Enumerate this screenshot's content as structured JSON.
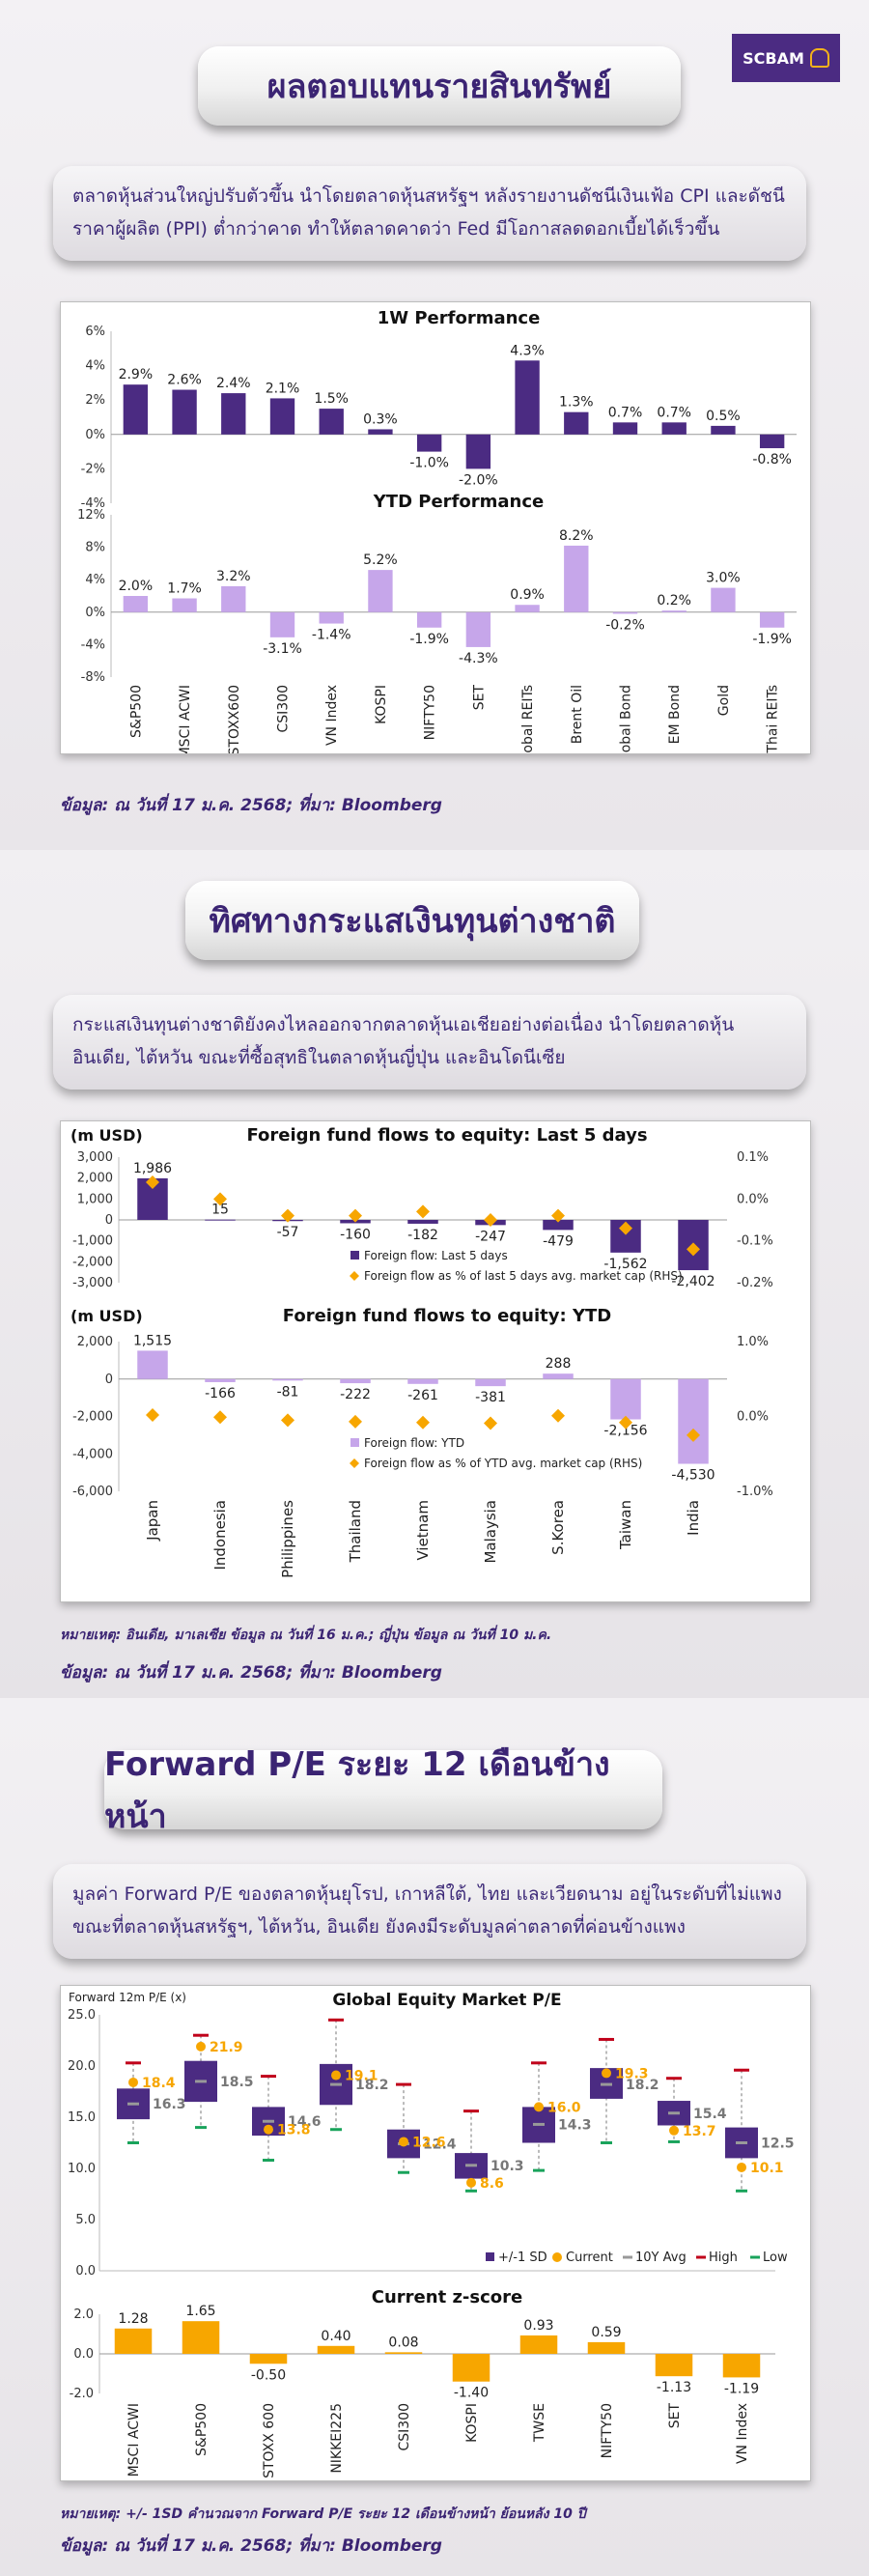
{
  "brand": {
    "logo_text": "SCBAM"
  },
  "section1": {
    "title": "ผลตอบแทนรายสินทรัพย์",
    "summary": "ตลาดหุ้นส่วนใหญ่ปรับตัวขึ้น นำโดยตลาดหุ้นสหรัฐฯ หลังรายงานดัชนีเงินเฟ้อ CPI และดัชนีราคาผู้ผลิต (PPI) ต่ำกว่าคาด ทำให้ตลาดคาดว่า Fed มีโอกาสลดดอกเบี้ยได้เร็วขึ้น",
    "source": "ข้อมูล: ณ วันที่ 17 ม.ค. 2568; ที่มา: Bloomberg"
  },
  "section2": {
    "title": "ทิศทางกระแสเงินทุนต่างชาติ",
    "summary": "กระแสเงินทุนต่างชาติยังคงไหลออกจากตลาดหุ้นเอเชียอย่างต่อเนื่อง นำโดยตลาดหุ้นอินเดีย, ไต้หวัน ขณะที่ซื้อสุทธิในตลาดหุ้นญี่ปุ่น และอินโดนีเซีย",
    "note": "หมายเหตุ: อินเดีย, มาเลเซีย ข้อมูล ณ วันที่ 16 ม.ค.; ญี่ปุ่น ข้อมูล ณ วันที่ 10 ม.ค.",
    "source": "ข้อมูล: ณ วันที่ 17 ม.ค. 2568; ที่มา: Bloomberg"
  },
  "section3": {
    "title": "Forward P/E ระยะ 12 เดือนข้างหน้า",
    "summary": "มูลค่า Forward P/E ของตลาดหุ้นยุโรป, เกาหลีใต้, ไทย และเวียดนาม อยู่ในระดับที่ไม่แพง ขณะที่ตลาดหุ้นสหรัฐฯ, ไต้หวัน, อินเดีย ยังคงมีระดับมูลค่าตลาดที่ค่อนข้างแพง",
    "note": "หมายเหตุ: +/- 1SD คำนวณจาก Forward P/E ระยะ 12 เดือนข้างหน้า ย้อนหลัง 10 ปี",
    "source": "ข้อมูล: ณ วันที่ 17 ม.ค. 2568; ที่มา: Bloomberg"
  },
  "chart_data": [
    {
      "id": "perf1w",
      "type": "bar",
      "title": "1W Performance",
      "categories": [
        "S&P500",
        "MSCI ACWI",
        "STOXX600",
        "CSI300",
        "VN Index",
        "KOSPI",
        "NIFTY50",
        "SET",
        "Global REITs",
        "Brent Oil",
        "Global Bond",
        "EM Bond",
        "Gold",
        "Thai REITs"
      ],
      "values": [
        2.9,
        2.6,
        2.4,
        2.1,
        1.5,
        0.3,
        -1.0,
        -2.0,
        4.3,
        1.3,
        0.7,
        0.7,
        0.5,
        -0.8
      ],
      "labels": [
        "2.9%",
        "2.6%",
        "2.4%",
        "2.1%",
        "1.5%",
        "0.3%",
        "-1.0%",
        "-2.0%",
        "4.3%",
        "1.3%",
        "0.7%",
        "0.7%",
        "0.5%",
        "-0.8%"
      ],
      "ylim": [
        -4,
        6
      ],
      "yticks": [
        "6%",
        "4%",
        "2%",
        "0%",
        "-2%",
        "-4%"
      ],
      "color": "#4b2b82"
    },
    {
      "id": "perfytd",
      "type": "bar",
      "title": "YTD Performance",
      "categories": [
        "S&P500",
        "MSCI ACWI",
        "STOXX600",
        "CSI300",
        "VN Index",
        "KOSPI",
        "NIFTY50",
        "SET",
        "Global REITs",
        "Brent Oil",
        "Global Bond",
        "EM Bond",
        "Gold",
        "Thai REITs"
      ],
      "values": [
        2.0,
        1.7,
        3.2,
        -3.1,
        -1.4,
        5.2,
        -1.9,
        -4.3,
        0.9,
        8.2,
        -0.2,
        0.2,
        3.0,
        -1.9
      ],
      "labels": [
        "2.0%",
        "1.7%",
        "3.2%",
        "-3.1%",
        "-1.4%",
        "5.2%",
        "-1.9%",
        "-4.3%",
        "0.9%",
        "8.2%",
        "-0.2%",
        "0.2%",
        "3.0%",
        "-1.9%"
      ],
      "ylim": [
        -8,
        12
      ],
      "yticks": [
        "12%",
        "8%",
        "4%",
        "0%",
        "-4%",
        "-8%"
      ],
      "color": "#c6a6ea"
    },
    {
      "id": "flow5d",
      "type": "bar",
      "title": "Foreign fund flows to equity: Last 5 days",
      "unit": "(m USD)",
      "categories": [
        "Japan",
        "Indonesia",
        "Philippines",
        "Thailand",
        "Vietnam",
        "Malaysia",
        "S.Korea",
        "Taiwan",
        "India"
      ],
      "values": [
        1986,
        15,
        -57,
        -160,
        -182,
        -247,
        -479,
        -1562,
        -2402
      ],
      "labels": [
        "1,986",
        "15",
        "-57",
        "-160",
        "-182",
        "-247",
        "-479",
        "-1,562",
        "-2,402"
      ],
      "pct_mcap": [
        0.04,
        0.0,
        -0.04,
        -0.04,
        -0.03,
        -0.05,
        -0.04,
        -0.07,
        -0.12
      ],
      "ylim": [
        -3000,
        3000
      ],
      "yticks": [
        "3,000",
        "2,000",
        "1,000",
        "0",
        "-1,000",
        "-2,000",
        "-3,000"
      ],
      "y2lim": [
        -0.2,
        0.1
      ],
      "y2ticks": [
        "0.1%",
        "0.0%",
        "-0.1%",
        "-0.2%"
      ],
      "legend": [
        "Foreign flow: Last 5 days",
        "Foreign flow as % of last 5 days avg. market cap (RHS)"
      ],
      "color": "#4b2b82",
      "marker_color": "#f7a600"
    },
    {
      "id": "flowytd",
      "type": "bar",
      "title": "Foreign fund flows to equity: YTD",
      "unit": "(m USD)",
      "categories": [
        "Japan",
        "Indonesia",
        "Philippines",
        "Thailand",
        "Vietnam",
        "Malaysia",
        "S.Korea",
        "Taiwan",
        "India"
      ],
      "values": [
        1515,
        -166,
        -81,
        -222,
        -261,
        -381,
        288,
        -2156,
        -4530
      ],
      "labels": [
        "1,515",
        "-166",
        "-81",
        "-222",
        "-261",
        "-381",
        "288",
        "-2,156",
        "-4,530"
      ],
      "pct_mcap": [
        0.02,
        -0.01,
        -0.05,
        -0.07,
        -0.08,
        -0.09,
        0.01,
        -0.08,
        -0.25
      ],
      "ylim": [
        -6000,
        2000
      ],
      "yticks": [
        "2,000",
        "0",
        "-2,000",
        "-4,000",
        "-6,000"
      ],
      "y2lim": [
        -1.0,
        1.0
      ],
      "y2ticks": [
        "1.0%",
        "0.0%",
        "-1.0%"
      ],
      "legend": [
        "Foreign flow: YTD",
        "Foreign flow as % of YTD avg. market cap (RHS)"
      ],
      "color": "#c6a6ea",
      "marker_color": "#f7a600"
    },
    {
      "id": "pe",
      "type": "box",
      "title": "Global Equity Market P/E",
      "ylabel": "Forward 12m P/E (x)",
      "categories": [
        "MSCI ACWI",
        "S&P500",
        "STOXX 600",
        "NIKKEI225",
        "CSI300",
        "KOSPI",
        "TWSE",
        "NIFTY50",
        "SET",
        "VN Index"
      ],
      "avg": [
        16.3,
        18.5,
        14.6,
        18.2,
        12.4,
        10.3,
        14.3,
        18.2,
        15.4,
        12.5
      ],
      "current": [
        18.4,
        21.9,
        13.8,
        19.1,
        12.6,
        8.6,
        16.0,
        19.3,
        13.7,
        10.1
      ],
      "sd_low": [
        14.8,
        16.5,
        13.2,
        16.2,
        11.0,
        9.0,
        12.5,
        16.8,
        14.2,
        11.0
      ],
      "sd_high": [
        17.8,
        20.5,
        16.0,
        20.2,
        13.8,
        11.5,
        16.0,
        19.8,
        16.6,
        14.0
      ],
      "high": [
        20.3,
        23.0,
        19.0,
        24.5,
        18.2,
        15.6,
        20.3,
        22.6,
        18.8,
        19.6
      ],
      "low": [
        12.5,
        14.0,
        10.8,
        13.8,
        9.6,
        7.8,
        9.8,
        12.5,
        12.6,
        7.8
      ],
      "ylim": [
        0,
        25
      ],
      "yticks": [
        "25.0",
        "20.0",
        "15.0",
        "10.0",
        "5.0",
        "0.0"
      ],
      "legend": [
        "+/-1 SD",
        "Current",
        "10Y Avg",
        "High",
        "Low"
      ]
    },
    {
      "id": "zscore",
      "type": "bar",
      "title": "Current z-score",
      "categories": [
        "MSCI ACWI",
        "S&P500",
        "STOXX 600",
        "NIKKEI225",
        "CSI300",
        "KOSPI",
        "TWSE",
        "NIFTY50",
        "SET",
        "VN Index"
      ],
      "values": [
        1.28,
        1.65,
        -0.5,
        0.4,
        0.08,
        -1.4,
        0.93,
        0.59,
        -1.13,
        -1.19
      ],
      "labels": [
        "1.28",
        "1.65",
        "-0.50",
        "0.40",
        "0.08",
        "-1.40",
        "0.93",
        "0.59",
        "-1.13",
        "-1.19"
      ],
      "ylim": [
        -2,
        2
      ],
      "yticks": [
        "2.0",
        "0.0",
        "-2.0"
      ],
      "color": "#f7a600"
    }
  ]
}
